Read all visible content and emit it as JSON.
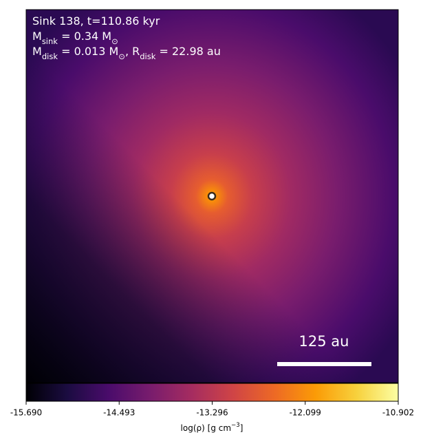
{
  "chart_data": {
    "type": "density-map",
    "annotations": [
      [
        {
          "text": "Sink 138, t=110.86 kyr"
        }
      ],
      [
        {
          "text": "M"
        },
        {
          "sub": "sink"
        },
        {
          "text": " = 0.34 M"
        },
        {
          "sub": "⊙"
        }
      ],
      [
        {
          "text": "M"
        },
        {
          "sub": "disk"
        },
        {
          "text": " = 0.013 M"
        },
        {
          "sub": "⊙"
        },
        {
          "text": ", R"
        },
        {
          "sub": "disk"
        },
        {
          "text": " = 22.98 au"
        }
      ]
    ],
    "scale_bar": "125 au",
    "colorbar": {
      "colormap": "inferno",
      "label": [
        {
          "text": "log(ρ) [g cm"
        },
        {
          "sup": "−3"
        },
        {
          "text": "]"
        }
      ],
      "lim": [
        -15.69,
        -10.902
      ],
      "ticks": [
        {
          "value": -15.69,
          "label": "-15.690"
        },
        -14.493,
        -13.296,
        -12.099,
        -10.902
      ]
    }
  }
}
